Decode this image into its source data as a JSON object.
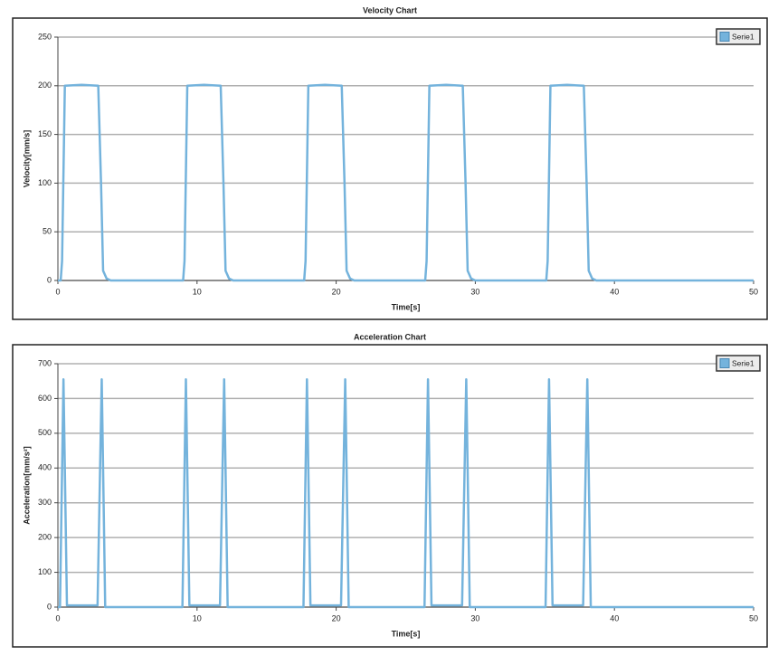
{
  "chart_data": [
    {
      "type": "line",
      "title": "Velocity Chart",
      "x_label": "Time[s]",
      "y_label": "Velocity[mm/s]",
      "xlim": [
        0,
        50
      ],
      "xticks": [
        0,
        10,
        20,
        30,
        40,
        50
      ],
      "ylim": [
        0,
        250
      ],
      "yticks": [
        0,
        50,
        100,
        150,
        200,
        250
      ],
      "grid": true,
      "legend": "top-right",
      "x": [
        0,
        0.2,
        0.3,
        0.5,
        1.7,
        2.9,
        3.1,
        3.25,
        3.5,
        3.8,
        9.0,
        9.1,
        9.3,
        10.5,
        11.7,
        11.9,
        12.05,
        12.3,
        12.6,
        17.7,
        17.8,
        18.0,
        19.2,
        20.4,
        20.6,
        20.75,
        21.0,
        21.3,
        26.4,
        26.5,
        26.7,
        27.9,
        29.1,
        29.3,
        29.45,
        29.7,
        30.0,
        35.1,
        35.2,
        35.4,
        36.6,
        37.8,
        38.0,
        38.15,
        38.4,
        38.7,
        50
      ],
      "series": [
        {
          "name": "Serie1",
          "color": "#74b3dc",
          "values": [
            0,
            0,
            20,
            200,
            201,
            200,
            100,
            10,
            2,
            0,
            0,
            20,
            200,
            201,
            200,
            100,
            10,
            2,
            0,
            0,
            20,
            200,
            201,
            200,
            100,
            10,
            2,
            0,
            0,
            20,
            200,
            201,
            200,
            100,
            10,
            2,
            0,
            0,
            20,
            200,
            201,
            200,
            100,
            10,
            2,
            0,
            0
          ]
        }
      ]
    },
    {
      "type": "line",
      "title": "Acceleration Chart",
      "x_label": "Time[s]",
      "y_label": "Acceleration[mm/s²]",
      "xlim": [
        0,
        50
      ],
      "xticks": [
        0,
        10,
        20,
        30,
        40,
        50
      ],
      "ylim": [
        0,
        700
      ],
      "yticks": [
        0,
        100,
        200,
        300,
        400,
        500,
        600,
        700
      ],
      "grid": true,
      "legend": "top-right",
      "x": [
        0,
        0.15,
        0.4,
        0.65,
        2.85,
        3.15,
        3.4,
        8.95,
        9.2,
        9.45,
        11.65,
        11.95,
        12.2,
        17.65,
        17.9,
        18.15,
        20.35,
        20.65,
        20.9,
        26.35,
        26.6,
        26.85,
        29.05,
        29.35,
        29.6,
        35.05,
        35.3,
        35.55,
        37.75,
        38.05,
        38.3,
        50
      ],
      "series": [
        {
          "name": "Serie1",
          "color": "#74b3dc",
          "values": [
            0,
            0,
            655,
            5,
            5,
            655,
            0,
            0,
            655,
            5,
            5,
            655,
            0,
            0,
            655,
            5,
            5,
            655,
            0,
            0,
            655,
            5,
            5,
            655,
            0,
            0,
            655,
            5,
            5,
            655,
            0,
            0
          ]
        }
      ]
    }
  ]
}
